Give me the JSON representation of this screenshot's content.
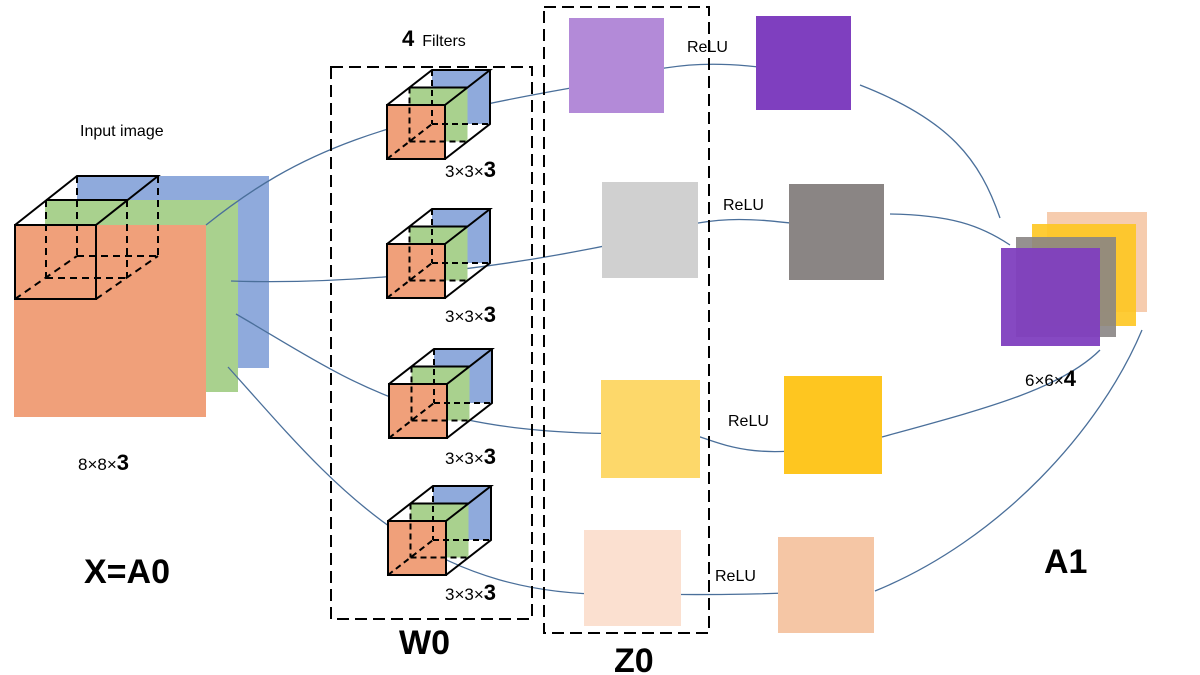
{
  "input": {
    "caption": "Input image",
    "dims_prefix": "8×8×",
    "dims_bold": "3",
    "name": "X=A0"
  },
  "filters": {
    "count": "4",
    "word": "Filters",
    "name": "W0",
    "items": [
      {
        "dims_prefix": "3×3×",
        "dims_bold": "3"
      },
      {
        "dims_prefix": "3×3×",
        "dims_bold": "3"
      },
      {
        "dims_prefix": "3×3×",
        "dims_bold": "3"
      },
      {
        "dims_prefix": "3×3×",
        "dims_bold": "3"
      }
    ]
  },
  "z0": {
    "name": "Z0",
    "colors": [
      "#b38ad8",
      "#d0d0d0",
      "#fdd86a",
      "#fbe0d0"
    ]
  },
  "activation": {
    "label": "ReLU"
  },
  "a1": {
    "name": "A1",
    "dims_prefix": "6×6×",
    "dims_bold": "4",
    "colors": [
      "#7f3fbf",
      "#8a8584",
      "#fec620",
      "#f5c6a5"
    ]
  },
  "channel_colors": {
    "red": "#f0a07a",
    "green": "#a9d18e",
    "blue": "#8faadc"
  }
}
